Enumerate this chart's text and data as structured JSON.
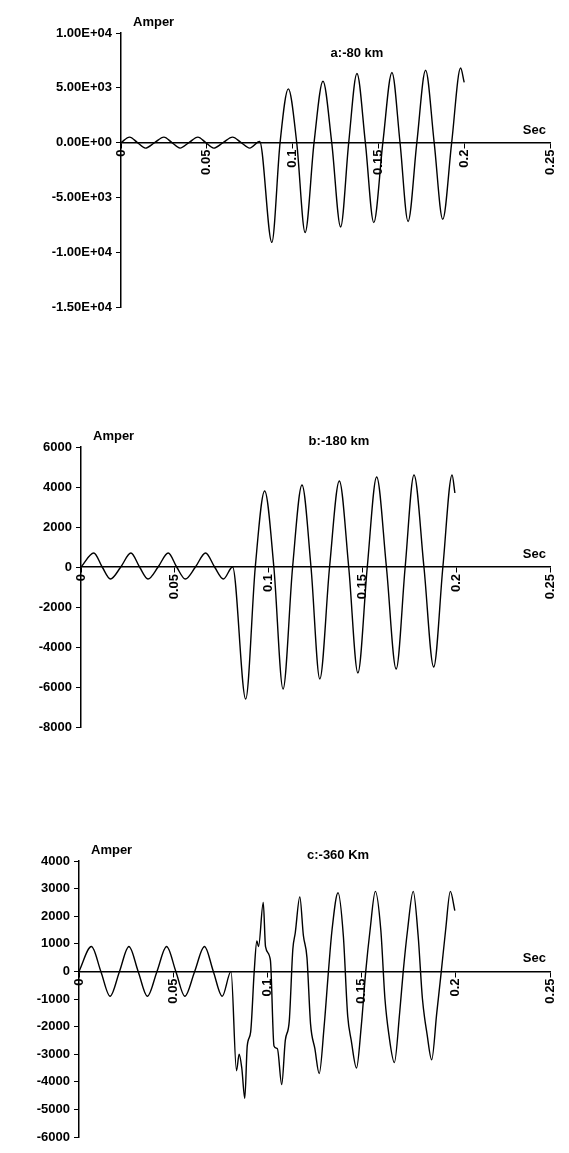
{
  "chart_data": [
    {
      "type": "line",
      "title": "a:-80 km",
      "xlabel": "Sec",
      "ylabel": "Amper",
      "marker": "none",
      "color": "#000000",
      "xlim": [
        0,
        0.25
      ],
      "xticks": [
        0,
        0.05,
        0.1,
        0.15,
        0.2,
        0.25
      ],
      "ylim": [
        -15000,
        10000
      ],
      "yticks": [
        {
          "value": 10000,
          "label": "1.00E+04"
        },
        {
          "value": 5000,
          "label": "5.00E+03"
        },
        {
          "value": 0,
          "label": "0.00E+00"
        },
        {
          "value": -5000,
          "label": "-5.00E+03"
        },
        {
          "value": -10000,
          "label": "-1.00E+04"
        },
        {
          "value": -15000,
          "label": "-1.50E+04"
        }
      ],
      "x": [
        0,
        0.005,
        0.0096,
        0.0142,
        0.0196,
        0.025,
        0.0297,
        0.0344,
        0.0396,
        0.0448,
        0.0494,
        0.054,
        0.0595,
        0.065,
        0.07,
        0.075,
        0.0808,
        0.0879,
        0.0927,
        0.0975,
        0.1024,
        0.1073,
        0.1125,
        0.1177,
        0.1228,
        0.128,
        0.1327,
        0.1375,
        0.1424,
        0.1473,
        0.1526,
        0.1579,
        0.1626,
        0.1673,
        0.1724,
        0.1775,
        0.1825,
        0.1875,
        0.1927,
        0.1979,
        0.2
      ],
      "values": [
        0,
        500,
        0,
        -500,
        0,
        500,
        0,
        -500,
        0,
        500,
        0,
        -500,
        0,
        500,
        0,
        -500,
        100,
        -9100,
        0,
        4900,
        0,
        -8200,
        0,
        5600,
        0,
        -7700,
        0,
        6300,
        0,
        -7300,
        0,
        6400,
        0,
        -7200,
        0,
        6600,
        0,
        -7000,
        0,
        6800,
        5500
      ]
    },
    {
      "type": "line",
      "title": "b:-180 km",
      "xlabel": "Sec",
      "ylabel": "Amper",
      "marker": "none",
      "color": "#000000",
      "xlim": [
        0,
        0.25
      ],
      "xticks": [
        0,
        0.05,
        0.1,
        0.15,
        0.2,
        0.25
      ],
      "ylim": [
        -8000,
        6000
      ],
      "yticks": [
        6000,
        4000,
        2000,
        0,
        -2000,
        -4000,
        -6000,
        -8000
      ],
      "x": [
        0,
        0.0068,
        0.0113,
        0.0157,
        0.0212,
        0.0266,
        0.0312,
        0.0357,
        0.0411,
        0.0465,
        0.051,
        0.0556,
        0.061,
        0.0664,
        0.0712,
        0.0759,
        0.0808,
        0.0878,
        0.0929,
        0.0979,
        0.1028,
        0.1077,
        0.1128,
        0.1178,
        0.1226,
        0.1273,
        0.1325,
        0.1377,
        0.1427,
        0.1476,
        0.1526,
        0.1576,
        0.1628,
        0.168,
        0.1728,
        0.1775,
        0.1828,
        0.188,
        0.1929,
        0.1978,
        0.1993
      ],
      "values": [
        0,
        700,
        0,
        -600,
        0,
        700,
        0,
        -600,
        0,
        700,
        0,
        -600,
        0,
        700,
        0,
        -600,
        0,
        -6600,
        0,
        3800,
        0,
        -6100,
        0,
        4100,
        0,
        -5600,
        0,
        4300,
        0,
        -5300,
        0,
        4500,
        0,
        -5100,
        0,
        4600,
        0,
        -5000,
        0,
        4600,
        3700
      ]
    },
    {
      "type": "line",
      "title": "c:-360 Km",
      "xlabel": "Sec",
      "ylabel": "Amper",
      "marker": "none",
      "color": "#000000",
      "xlim": [
        0,
        0.25
      ],
      "xticks": [
        0,
        0.05,
        0.1,
        0.15,
        0.2,
        0.25
      ],
      "ylim": [
        -6000,
        4000
      ],
      "yticks": [
        4000,
        3000,
        2000,
        1000,
        0,
        -1000,
        -2000,
        -3000,
        -4000,
        -5000,
        -6000
      ],
      "x": [
        0,
        0.0066,
        0.0116,
        0.0165,
        0.0215,
        0.0265,
        0.0314,
        0.0363,
        0.0414,
        0.0465,
        0.0514,
        0.0562,
        0.0614,
        0.0666,
        0.0713,
        0.076,
        0.0807,
        0.0836,
        0.085,
        0.0864,
        0.088,
        0.0893,
        0.0911,
        0.093,
        0.0944,
        0.0953,
        0.0978,
        0.099,
        0.1016,
        0.1035,
        0.1053,
        0.1076,
        0.1095,
        0.1116,
        0.1135,
        0.1148,
        0.1172,
        0.1191,
        0.121,
        0.1229,
        0.1252,
        0.1275,
        0.1301,
        0.1324,
        0.1343,
        0.1375,
        0.1403,
        0.1426,
        0.1445,
        0.1473,
        0.1498,
        0.1522,
        0.1545,
        0.1573,
        0.1602,
        0.1624,
        0.1645,
        0.1674,
        0.1702,
        0.1721,
        0.1744,
        0.1774,
        0.18,
        0.1823,
        0.1848,
        0.1872,
        0.1899,
        0.1923,
        0.1946,
        0.1971,
        0.1995
      ],
      "values": [
        0,
        900,
        0,
        -900,
        0,
        900,
        0,
        -900,
        0,
        900,
        0,
        -900,
        0,
        900,
        0,
        -900,
        0,
        -3600,
        -3000,
        -3500,
        -4600,
        -2700,
        -2200,
        0,
        1100,
        900,
        2500,
        900,
        400,
        -2700,
        -2800,
        -4100,
        -2500,
        -1800,
        800,
        1400,
        2700,
        1300,
        500,
        -1900,
        -2800,
        -3700,
        -2000,
        0,
        1500,
        2850,
        1300,
        -1600,
        -2500,
        -3500,
        -2000,
        0,
        1500,
        2900,
        1500,
        -1000,
        -2300,
        -3300,
        -1500,
        0,
        1500,
        2900,
        1300,
        -1000,
        -2300,
        -3200,
        -1500,
        0,
        1500,
        2900,
        2200
      ]
    }
  ]
}
